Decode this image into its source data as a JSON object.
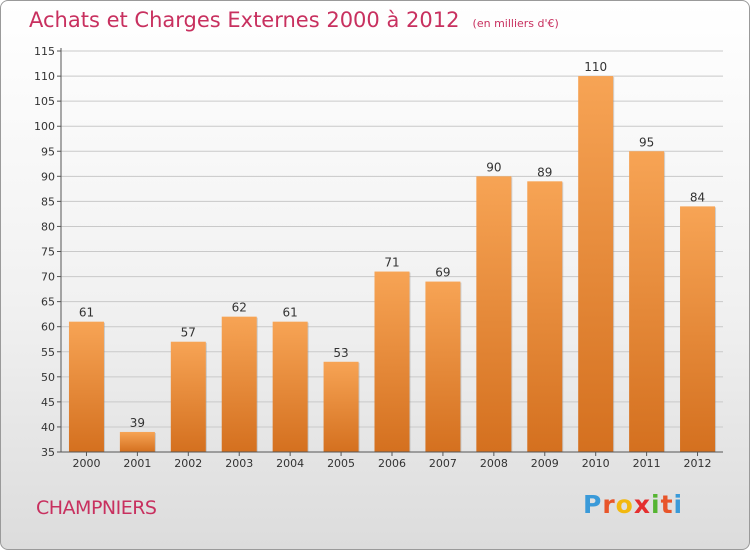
{
  "header": {
    "title": "Achats et Charges Externes 2000 à 2012",
    "unit": "(en milliers d'€)"
  },
  "footer": {
    "commune": "CHAMPNIERS",
    "brand": "Proxiti",
    "brand_colors": [
      "#3a9ad9",
      "#e8552a",
      "#f2b80f",
      "#e52f2f",
      "#55b532",
      "#e8552a",
      "#3a9ad9"
    ]
  },
  "colors": {
    "title": "#c8305f",
    "bar_light": "#f7a455",
    "bar_dark": "#d4701f",
    "grid": "#c9c9c9"
  },
  "chart_data": {
    "type": "bar",
    "categories": [
      "2000",
      "2001",
      "2002",
      "2003",
      "2004",
      "2005",
      "2006",
      "2007",
      "2008",
      "2009",
      "2010",
      "2011",
      "2012"
    ],
    "values": [
      61,
      39,
      57,
      62,
      61,
      53,
      71,
      69,
      90,
      89,
      110,
      95,
      84
    ],
    "ylim": [
      35,
      115
    ],
    "yticks": [
      35,
      40,
      45,
      50,
      55,
      60,
      65,
      70,
      75,
      80,
      85,
      90,
      95,
      100,
      105,
      110,
      115
    ],
    "grid": true,
    "data_labels": true,
    "title": "Achats et Charges Externes 2000 à 2012",
    "xlabel": "",
    "ylabel": ""
  }
}
